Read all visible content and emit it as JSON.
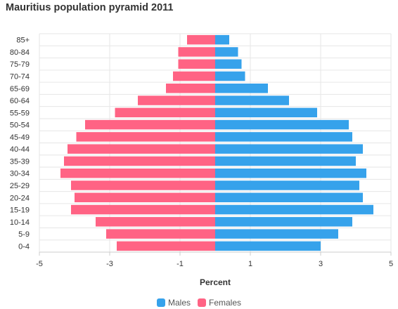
{
  "title": "Mauritius population pyramid 2011",
  "chart_data": {
    "type": "bar",
    "orientation": "horizontal",
    "title": "Mauritius population pyramid 2011",
    "xlabel": "Percent",
    "ylabel": "",
    "xlim": [
      -5,
      5
    ],
    "xticks": [
      "-5",
      "-3",
      "-1",
      "1",
      "3",
      "5"
    ],
    "categories": [
      "85+",
      "80-84",
      "75-79",
      "70-74",
      "65-69",
      "60-64",
      "55-59",
      "50-54",
      "45-49",
      "40-44",
      "35-39",
      "30-34",
      "25-29",
      "20-24",
      "15-19",
      "10-14",
      "5-9",
      "0-4"
    ],
    "series": [
      {
        "name": "Males",
        "color": "#36a2eb",
        "values": [
          0.4,
          0.65,
          0.75,
          0.85,
          1.5,
          2.1,
          2.9,
          3.8,
          3.9,
          4.2,
          4.0,
          4.3,
          4.1,
          4.2,
          4.5,
          3.9,
          3.5,
          3.0
        ]
      },
      {
        "name": "Females",
        "color": "#ff6384",
        "values": [
          -0.8,
          -1.05,
          -1.05,
          -1.2,
          -1.4,
          -2.2,
          -2.85,
          -3.7,
          -3.95,
          -4.2,
          -4.3,
          -4.4,
          -4.1,
          -4.0,
          -4.1,
          -3.4,
          -3.1,
          -2.8
        ]
      }
    ],
    "grid": true,
    "legend_position": "bottom"
  },
  "legend": {
    "items": [
      {
        "label": "Males",
        "color": "#36a2eb"
      },
      {
        "label": "Females",
        "color": "#ff6384"
      }
    ]
  }
}
